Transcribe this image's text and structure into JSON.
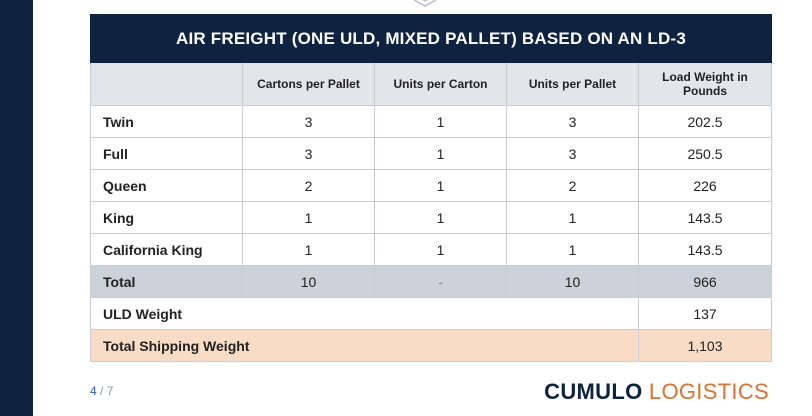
{
  "table": {
    "title": "AIR FREIGHT (ONE ULD, MIXED PALLET) BASED ON AN LD-3",
    "headers": [
      "",
      "Cartons per Pallet",
      "Units per Carton",
      "Units per Pallet",
      "Load Weight in Pounds"
    ],
    "rows": [
      [
        "Twin",
        "3",
        "1",
        "3",
        "202.5"
      ],
      [
        "Full",
        "3",
        "1",
        "3",
        "250.5"
      ],
      [
        "Queen",
        "2",
        "1",
        "2",
        "226"
      ],
      [
        "King",
        "1",
        "1",
        "1",
        "143.5"
      ],
      [
        "California King",
        "1",
        "1",
        "1",
        "143.5"
      ]
    ],
    "total": [
      "Total",
      "10",
      "-",
      "10",
      "966"
    ],
    "uld_weight": {
      "label": "ULD Weight",
      "value": "137"
    },
    "shipping_weight": {
      "label": "Total Shipping Weight",
      "value": "1,103"
    }
  },
  "pagination": {
    "current": "4",
    "separator": " / ",
    "total": "7"
  },
  "brand": {
    "part1": "CUMULO",
    "part2": " LOGISTICS"
  },
  "colors": {
    "navy": "#0e2340",
    "accent": "#e0702a",
    "highlight": "#f8dcc6",
    "total_row": "#ccd2da"
  }
}
